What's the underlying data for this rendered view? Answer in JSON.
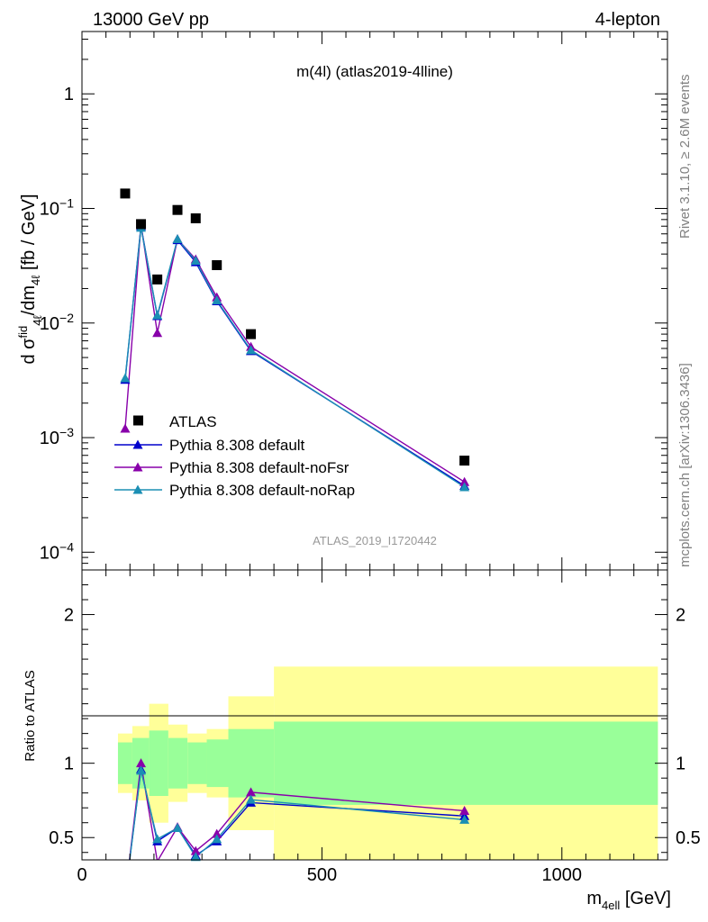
{
  "header": {
    "left": "13000 GeV pp",
    "right": "4-lepton"
  },
  "side_labels": {
    "rivet": "Rivet 3.1.10, ≥ 2.6M events",
    "mcplots": "mcplots.cern.ch [arXiv:1306.3436]"
  },
  "chart_data": [
    {
      "type": "scatter",
      "title": "m(4l) (atlas2019-4lline)",
      "ylabel": "d σ^{fid}_{4ℓ}/dm_{4ℓ} [fb / GeV]",
      "xlabel": "",
      "yscale": "log",
      "xlim": [
        0,
        1220
      ],
      "ylim": [
        7e-05,
        3.5
      ],
      "yticks": [
        {
          "v": 0.0001,
          "base": "10",
          "exp": "−4"
        },
        {
          "v": 0.001,
          "base": "10",
          "exp": "−3"
        },
        {
          "v": 0.01,
          "base": "10",
          "exp": "−2"
        },
        {
          "v": 0.1,
          "base": "10",
          "exp": "−1"
        },
        {
          "v": 1,
          "base": "1",
          "exp": ""
        }
      ],
      "watermark": "ATLAS_2019_I1720442",
      "legend_position": "lower-left",
      "data": {
        "name": "ATLAS",
        "x": [
          90,
          123,
          157,
          199,
          237,
          281,
          352,
          797
        ],
        "y": [
          0.135,
          0.073,
          0.024,
          0.097,
          0.082,
          0.032,
          0.008,
          0.00063
        ]
      },
      "series": [
        {
          "name": "Pythia 8.308 default",
          "color": "#0000cc",
          "x": [
            90,
            123,
            157,
            199,
            237,
            281,
            352,
            797
          ],
          "y": [
            0.0032,
            0.07,
            0.0115,
            0.053,
            0.034,
            0.0155,
            0.0057,
            0.00038
          ]
        },
        {
          "name": "Pythia 8.308 default-noFsr",
          "color": "#8800aa",
          "x": [
            90,
            123,
            157,
            199,
            237,
            281,
            352,
            797
          ],
          "y": [
            0.0012,
            0.072,
            0.0082,
            0.054,
            0.036,
            0.0168,
            0.0062,
            0.00041
          ]
        },
        {
          "name": "Pythia 8.308 default-noRap",
          "color": "#1b8fb4",
          "x": [
            90,
            123,
            157,
            199,
            237,
            281,
            352,
            797
          ],
          "y": [
            0.0033,
            0.068,
            0.0117,
            0.054,
            0.035,
            0.0158,
            0.0058,
            0.00037
          ]
        }
      ]
    },
    {
      "type": "line",
      "ylabel": "Ratio to ATLAS",
      "xlabel": "m_{4ell} [GeV]",
      "xlim": [
        0,
        1220
      ],
      "ylim": [
        0.35,
        2.3
      ],
      "yticks": [
        0.5,
        1,
        2
      ],
      "xticks": [
        0,
        500,
        1000
      ],
      "bands": {
        "edges": [
          75,
          105,
          140,
          180,
          220,
          260,
          305,
          400,
          1200
        ],
        "inner_lo": [
          0.86,
          0.83,
          0.78,
          0.83,
          0.86,
          0.84,
          0.77,
          0.72
        ],
        "inner_hi": [
          1.14,
          1.17,
          1.22,
          1.17,
          1.14,
          1.16,
          1.23,
          1.28
        ],
        "outer_lo": [
          0.8,
          0.75,
          0.6,
          0.74,
          0.8,
          0.77,
          0.55,
          0.35
        ],
        "outer_hi": [
          1.2,
          1.25,
          1.4,
          1.26,
          1.2,
          1.23,
          1.45,
          1.65
        ],
        "inner_color": "#99ff99",
        "outer_color": "#ffff99"
      },
      "series": [
        {
          "name": "Pythia 8.308 default",
          "color": "#0000cc",
          "x": [
            90,
            123,
            157,
            199,
            237,
            281,
            352,
            797
          ],
          "y": [
            0.024,
            0.96,
            0.475,
            0.565,
            0.38,
            0.475,
            0.735,
            0.645
          ]
        },
        {
          "name": "Pythia 8.308 default-noFsr",
          "color": "#8800aa",
          "x": [
            90,
            123,
            157,
            199,
            237,
            281,
            352,
            797
          ],
          "y": [
            0.009,
            1.0,
            0.34,
            0.57,
            0.41,
            0.525,
            0.805,
            0.68
          ]
        },
        {
          "name": "Pythia 8.308 default-noRap",
          "color": "#1b8fb4",
          "x": [
            90,
            123,
            157,
            199,
            237,
            281,
            352,
            797
          ],
          "y": [
            0.025,
            0.95,
            0.49,
            0.565,
            0.37,
            0.49,
            0.755,
            0.62
          ]
        }
      ]
    }
  ]
}
